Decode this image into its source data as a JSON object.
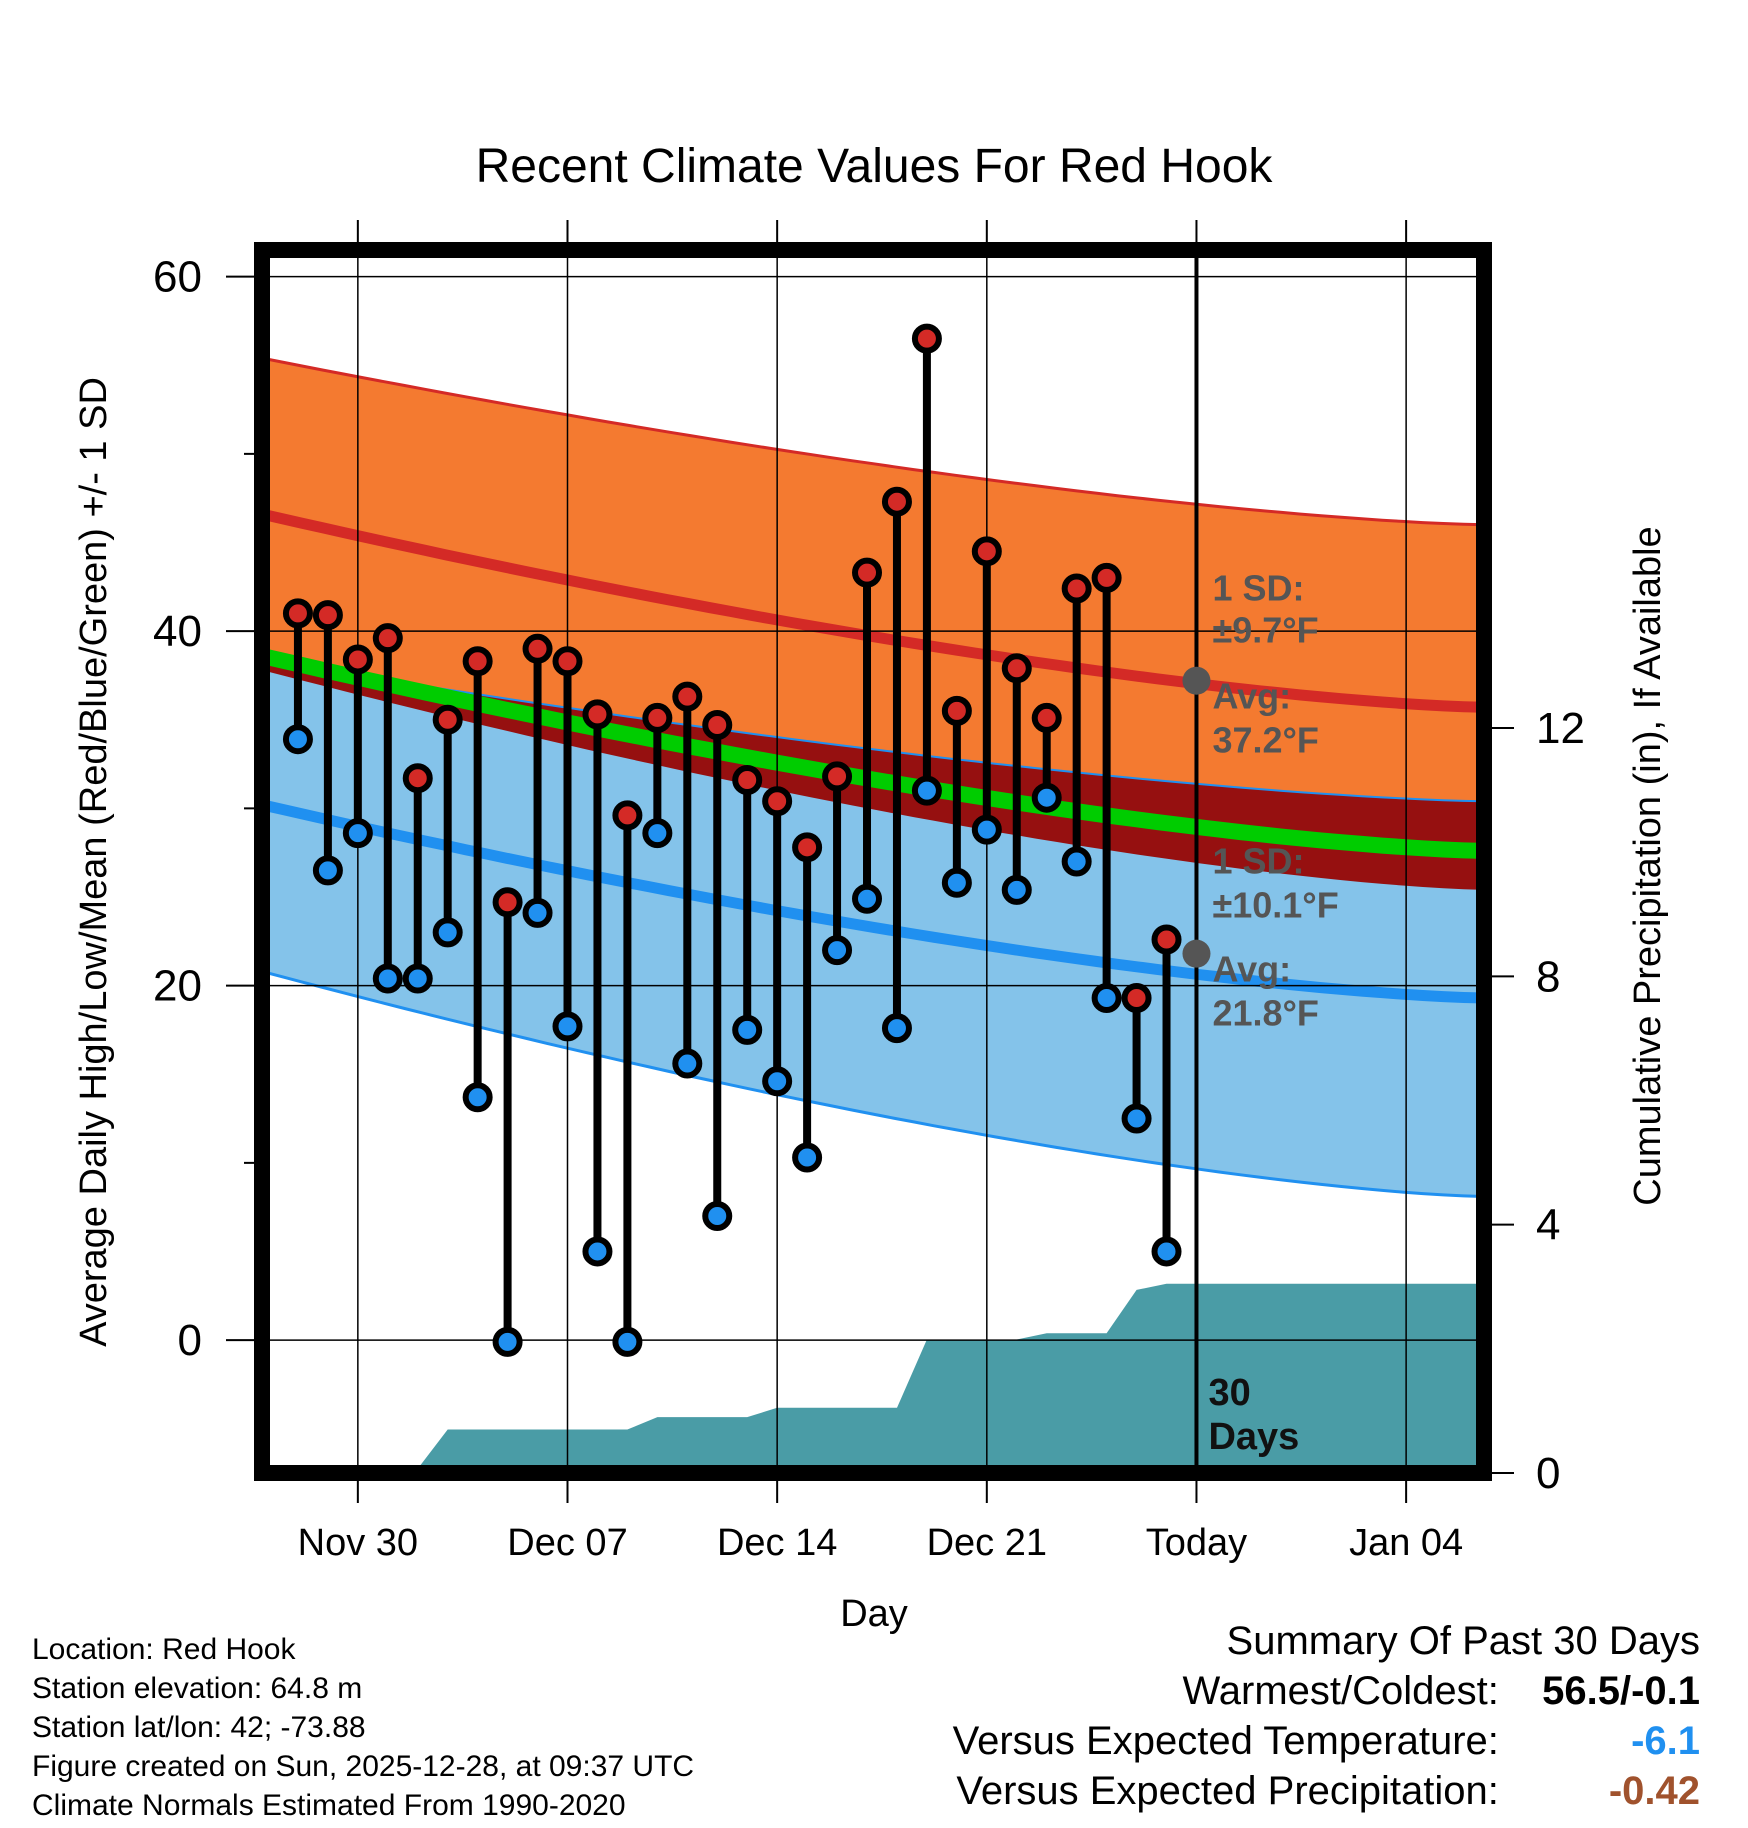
{
  "chart_data": {
    "type": "line",
    "title": "Recent Climate Values For Red Hook",
    "xlabel": "Day",
    "ylabel": "Average Daily High/Low/Mean (Red/Blue/Green) +/- 1 SD",
    "y2label": "Cumulative Precipitation (in), If Available",
    "ylim": [
      -7.5,
      61.5
    ],
    "y_ticks": [
      "60",
      "40",
      "20",
      "0"
    ],
    "y2lim": [
      0,
      19.7
    ],
    "y2_ticks": [
      "12",
      "8",
      "4",
      "0"
    ],
    "x_tick_labels": [
      "Nov 30",
      "Dec 07",
      "Dec 14",
      "Dec 21",
      "Today",
      "Jan 04"
    ],
    "x_tick_days": [
      3,
      10,
      17,
      24,
      31,
      38
    ],
    "xlim": [
      -0.2,
      40.6
    ],
    "today_day": 31,
    "normals": {
      "high_mean": [
        46.6,
        35.7
      ],
      "high_upper": [
        55.4,
        46.0
      ],
      "high_lower": [
        37.8,
        25.4
      ],
      "low_mean": [
        30.2,
        19.3
      ],
      "low_upper": [
        38.4,
        30.4
      ],
      "low_lower": [
        20.8,
        8.1
      ],
      "mean_normal": [
        38.6,
        27.6
      ]
    },
    "daily_highs": [
      41.0,
      40.9,
      38.4,
      39.6,
      31.7,
      35.0,
      38.3,
      24.7,
      39.0,
      38.3,
      35.3,
      29.6,
      35.1,
      36.3,
      34.7,
      31.6,
      30.4,
      27.8,
      31.8,
      43.3,
      47.3,
      56.5,
      35.5,
      44.5,
      37.9,
      35.1,
      42.4,
      43.0,
      19.3,
      22.6
    ],
    "daily_lows": [
      33.9,
      26.5,
      28.6,
      20.4,
      20.4,
      23.0,
      13.7,
      -0.1,
      24.1,
      17.7,
      5.0,
      -0.1,
      28.6,
      15.6,
      7.0,
      17.5,
      14.6,
      10.3,
      22.0,
      24.9,
      17.6,
      31.0,
      25.8,
      28.8,
      25.4,
      30.6,
      27.0,
      19.3,
      12.5,
      5.0
    ],
    "precip_cumulative": [
      0,
      0,
      0,
      0,
      0.07,
      0.7,
      0.7,
      0.7,
      0.7,
      0.7,
      0.7,
      0.7,
      0.9,
      0.9,
      0.9,
      0.9,
      1.05,
      1.05,
      1.05,
      1.05,
      1.05,
      2.15,
      2.15,
      2.15,
      2.15,
      2.25,
      2.25,
      2.25,
      2.95,
      3.05,
      3.05
    ],
    "annotations": {
      "high_sd_label": "1 SD:",
      "high_sd_value": "±9.7°F",
      "high_avg_label": "Avg:",
      "high_avg_value": "37.2°F",
      "high_avg_num": 37.2,
      "low_sd_label": "1 SD:",
      "low_sd_value": "±10.1°F",
      "low_avg_label": "Avg:",
      "low_avg_value": "21.8°F",
      "low_avg_num": 21.8,
      "days_label_1": "30",
      "days_label_2": "Days"
    },
    "colors": {
      "high_band": "#f47a30",
      "high_line": "#d42a26",
      "low_band": "#84c3ea",
      "low_line": "#2090f0",
      "mean_line": "#00cc00",
      "overlap_band": "#961010",
      "precip": "#4a9ca6",
      "high_dot": "#d42a26",
      "low_dot": "#2090f0",
      "avg_dot": "#555555",
      "annotation_text": "#555555"
    }
  },
  "info": {
    "location": "Location: Red Hook",
    "elevation": "Station elevation: 64.8 m",
    "latlon": "Station lat/lon: 42; -73.88",
    "created": "Figure created on Sun, 2025-12-28, at 09:37 UTC",
    "normals": "Climate Normals Estimated From 1990-2020"
  },
  "summary": {
    "title": "Summary Of Past 30 Days",
    "warmest_label": "Warmest/Coldest:",
    "warmest_value": "56.5/-0.1",
    "temp_label": "Versus Expected Temperature:",
    "temp_value": "-6.1",
    "temp_color": "#2090f0",
    "precip_label": "Versus Expected Precipitation:",
    "precip_value": "-0.42",
    "precip_color": "#a0522d"
  }
}
